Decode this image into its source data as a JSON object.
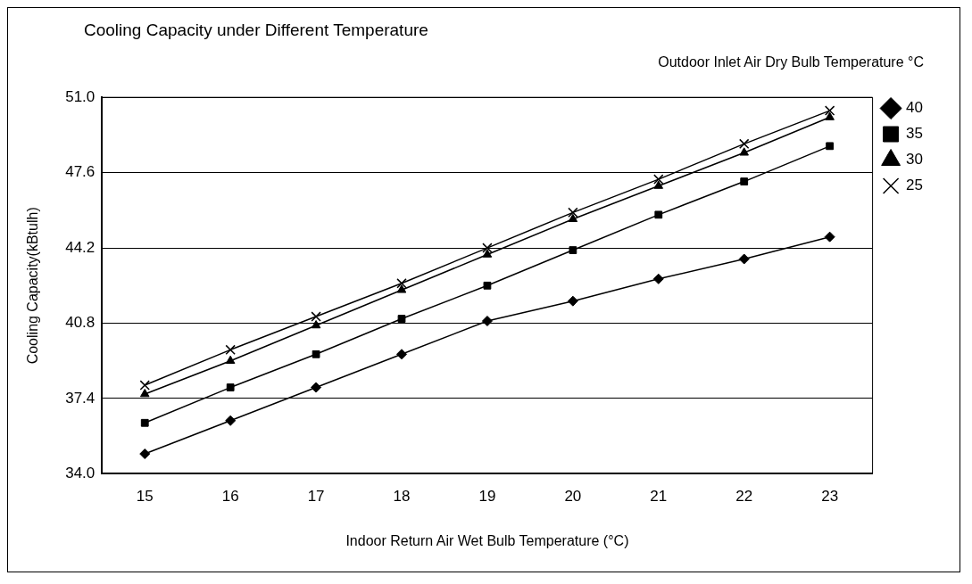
{
  "chart_data": {
    "type": "line",
    "title": "Cooling Capacity under Different Temperature",
    "legend_title": "Outdoor Inlet Air Dry Bulb Temperature °C",
    "xlabel": "Indoor Return Air Wet Bulb Temperature (°C)",
    "ylabel": "Cooling Capacity(kBtulh)",
    "categories": [
      "15",
      "16",
      "17",
      "18",
      "19",
      "20",
      "21",
      "22",
      "23"
    ],
    "series": [
      {
        "name": "40",
        "color": "#000000",
        "marker": "diamond",
        "values": [
          34.9,
          36.4,
          37.9,
          39.4,
          40.9,
          41.8,
          42.8,
          43.7,
          44.7
        ]
      },
      {
        "name": "35",
        "color": "#000000",
        "marker": "square",
        "values": [
          36.3,
          37.9,
          39.4,
          41.0,
          42.5,
          44.1,
          45.7,
          47.2,
          48.8
        ]
      },
      {
        "name": "30",
        "color": "#000000",
        "marker": "triangle",
        "values": [
          37.6,
          39.1,
          40.7,
          42.3,
          43.9,
          45.5,
          47.0,
          48.5,
          50.1
        ]
      },
      {
        "name": "25",
        "color": "#000000",
        "marker": "cross",
        "values": [
          38.0,
          39.6,
          41.1,
          42.6,
          44.2,
          45.8,
          47.3,
          48.9,
          50.4
        ]
      }
    ],
    "ylim": [
      34.0,
      51.0
    ],
    "yticks": [
      {
        "value": 34.0,
        "label": "34.0"
      },
      {
        "value": 37.4,
        "label": "37.4"
      },
      {
        "value": 40.8,
        "label": "40.8"
      },
      {
        "value": 44.2,
        "label": "44.2"
      },
      {
        "value": 47.6,
        "label": "47.6"
      },
      {
        "value": 51.0,
        "label": "51.0"
      }
    ],
    "grid": "y",
    "legend": "right",
    "line_style": "solid"
  }
}
